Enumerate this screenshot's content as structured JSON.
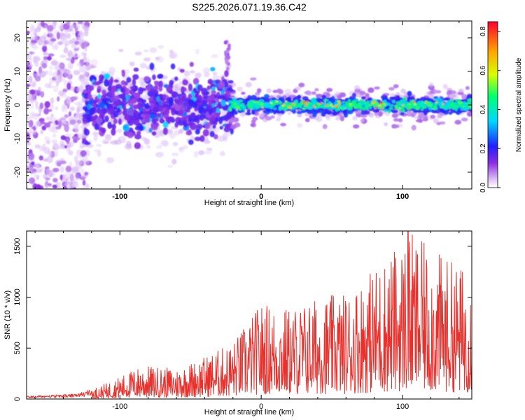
{
  "title": "S225.2026.071.19.36.C42",
  "chart_data": [
    {
      "type": "heatmap",
      "xlabel": "Height of straight line (km)",
      "ylabel": "Frequency (Hz)",
      "xlim": [
        -166,
        149
      ],
      "ylim": [
        -25,
        25
      ],
      "xticks": [
        -100,
        0,
        100
      ],
      "yticks": [
        -20,
        -10,
        0,
        10,
        20
      ],
      "colorbar": {
        "label": "Normalized spectral amplitude",
        "range": [
          0,
          0.85
        ],
        "ticks": [
          0.0,
          0.2,
          0.4,
          0.6,
          0.8
        ]
      },
      "description_regions": [
        {
          "x_range": [
            -166,
            -125
          ],
          "freq_spread": 25,
          "level": "low"
        },
        {
          "x_range": [
            -125,
            -20
          ],
          "freq_spread": 10,
          "level": "low-mid"
        },
        {
          "x_range": [
            -20,
            149
          ],
          "freq_spread": 2.5,
          "level": "mid-high",
          "peak_x": [
            20,
            33,
            55,
            82
          ]
        }
      ]
    },
    {
      "type": "line",
      "xlabel": "Height of straight line (km)",
      "ylabel": "SNR (10 * v/v)",
      "xlim": [
        -166,
        149
      ],
      "ylim": [
        0,
        1650
      ],
      "xticks": [
        -100,
        0,
        100
      ],
      "yticks": [
        0,
        500,
        1000,
        1500
      ],
      "series_color": "#e8302c",
      "envelope": [
        {
          "x": -166,
          "y": 30
        },
        {
          "x": -130,
          "y": 50
        },
        {
          "x": -110,
          "y": 150
        },
        {
          "x": -85,
          "y": 330
        },
        {
          "x": -60,
          "y": 300
        },
        {
          "x": -40,
          "y": 420
        },
        {
          "x": -20,
          "y": 560
        },
        {
          "x": 0,
          "y": 950
        },
        {
          "x": 20,
          "y": 900
        },
        {
          "x": 40,
          "y": 1000
        },
        {
          "x": 60,
          "y": 1050
        },
        {
          "x": 80,
          "y": 1300
        },
        {
          "x": 100,
          "y": 1550
        },
        {
          "x": 104,
          "y": 1650
        },
        {
          "x": 120,
          "y": 1480
        },
        {
          "x": 149,
          "y": 1250
        }
      ]
    }
  ]
}
